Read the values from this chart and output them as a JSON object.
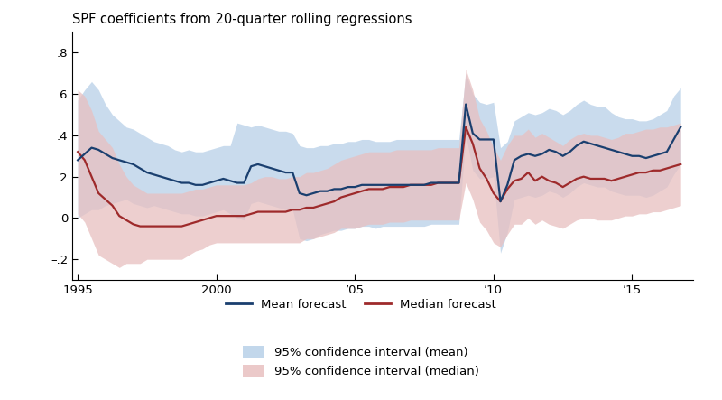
{
  "title": "SPF coefficients from 20-quarter rolling regressions",
  "xlim": [
    1994.8,
    2017.2
  ],
  "ylim": [
    -0.3,
    0.9
  ],
  "yticks": [
    -0.2,
    0.0,
    0.2,
    0.4,
    0.6,
    0.8
  ],
  "ytick_labels": [
    "–.2",
    "0",
    ".2",
    ".4",
    ".6",
    ".8"
  ],
  "xtick_positions": [
    1995,
    2000,
    2005,
    2010,
    2015
  ],
  "xtick_labels": [
    "1995",
    "2000",
    "’05",
    "’10",
    "’15"
  ],
  "mean_color": "#1a3f6f",
  "median_color": "#9e2a2b",
  "mean_ci_color": "#b8d0e8",
  "median_ci_color": "#e8c0c0",
  "mean_x": [
    1995.0,
    1995.25,
    1995.5,
    1995.75,
    1996.0,
    1996.25,
    1996.5,
    1996.75,
    1997.0,
    1997.25,
    1997.5,
    1997.75,
    1998.0,
    1998.25,
    1998.5,
    1998.75,
    1999.0,
    1999.25,
    1999.5,
    1999.75,
    2000.0,
    2000.25,
    2000.5,
    2000.75,
    2001.0,
    2001.25,
    2001.5,
    2001.75,
    2002.0,
    2002.25,
    2002.5,
    2002.75,
    2003.0,
    2003.25,
    2003.5,
    2003.75,
    2004.0,
    2004.25,
    2004.5,
    2004.75,
    2005.0,
    2005.25,
    2005.5,
    2005.75,
    2006.0,
    2006.25,
    2006.5,
    2006.75,
    2007.0,
    2007.25,
    2007.5,
    2007.75,
    2008.0,
    2008.25,
    2008.5,
    2008.75,
    2009.0,
    2009.25,
    2009.5,
    2009.75,
    2010.0,
    2010.25,
    2010.5,
    2010.75,
    2011.0,
    2011.25,
    2011.5,
    2011.75,
    2012.0,
    2012.25,
    2012.5,
    2012.75,
    2013.0,
    2013.25,
    2013.5,
    2013.75,
    2014.0,
    2014.25,
    2014.5,
    2014.75,
    2015.0,
    2015.25,
    2015.5,
    2015.75,
    2016.0,
    2016.25,
    2016.5,
    2016.75
  ],
  "mean_y": [
    0.28,
    0.31,
    0.34,
    0.33,
    0.31,
    0.29,
    0.28,
    0.27,
    0.26,
    0.24,
    0.22,
    0.21,
    0.2,
    0.19,
    0.18,
    0.17,
    0.17,
    0.16,
    0.16,
    0.17,
    0.18,
    0.19,
    0.18,
    0.17,
    0.17,
    0.25,
    0.26,
    0.25,
    0.24,
    0.23,
    0.22,
    0.22,
    0.12,
    0.11,
    0.12,
    0.13,
    0.13,
    0.14,
    0.14,
    0.15,
    0.15,
    0.16,
    0.16,
    0.16,
    0.16,
    0.16,
    0.16,
    0.16,
    0.16,
    0.16,
    0.16,
    0.17,
    0.17,
    0.17,
    0.17,
    0.17,
    0.55,
    0.41,
    0.38,
    0.38,
    0.38,
    0.08,
    0.16,
    0.28,
    0.3,
    0.31,
    0.3,
    0.31,
    0.33,
    0.32,
    0.3,
    0.32,
    0.35,
    0.37,
    0.36,
    0.35,
    0.34,
    0.33,
    0.32,
    0.31,
    0.3,
    0.3,
    0.29,
    0.3,
    0.31,
    0.32,
    0.38,
    0.44
  ],
  "mean_ci_upper": [
    0.57,
    0.62,
    0.66,
    0.62,
    0.55,
    0.5,
    0.47,
    0.44,
    0.43,
    0.41,
    0.39,
    0.37,
    0.36,
    0.35,
    0.33,
    0.32,
    0.33,
    0.32,
    0.32,
    0.33,
    0.34,
    0.35,
    0.35,
    0.46,
    0.45,
    0.44,
    0.45,
    0.44,
    0.43,
    0.42,
    0.42,
    0.41,
    0.35,
    0.34,
    0.34,
    0.35,
    0.35,
    0.36,
    0.36,
    0.37,
    0.37,
    0.38,
    0.38,
    0.37,
    0.37,
    0.37,
    0.38,
    0.38,
    0.38,
    0.38,
    0.38,
    0.38,
    0.38,
    0.38,
    0.38,
    0.38,
    0.7,
    0.6,
    0.56,
    0.55,
    0.56,
    0.34,
    0.37,
    0.47,
    0.49,
    0.51,
    0.5,
    0.51,
    0.53,
    0.52,
    0.5,
    0.52,
    0.55,
    0.57,
    0.55,
    0.54,
    0.54,
    0.51,
    0.49,
    0.48,
    0.48,
    0.47,
    0.47,
    0.48,
    0.5,
    0.52,
    0.59,
    0.63
  ],
  "mean_ci_lower": [
    0.0,
    0.02,
    0.04,
    0.04,
    0.06,
    0.07,
    0.08,
    0.09,
    0.07,
    0.06,
    0.05,
    0.06,
    0.05,
    0.04,
    0.03,
    0.02,
    0.02,
    0.01,
    0.01,
    0.02,
    0.03,
    0.04,
    0.02,
    0.0,
    -0.01,
    0.07,
    0.08,
    0.07,
    0.06,
    0.05,
    0.04,
    0.04,
    -0.1,
    -0.11,
    -0.1,
    -0.08,
    -0.07,
    -0.06,
    -0.06,
    -0.05,
    -0.05,
    -0.04,
    -0.04,
    -0.05,
    -0.04,
    -0.04,
    -0.04,
    -0.04,
    -0.04,
    -0.04,
    -0.04,
    -0.03,
    -0.03,
    -0.03,
    -0.03,
    -0.03,
    0.4,
    0.23,
    0.19,
    0.19,
    0.2,
    -0.17,
    -0.07,
    0.09,
    0.1,
    0.11,
    0.1,
    0.11,
    0.13,
    0.12,
    0.1,
    0.12,
    0.15,
    0.17,
    0.16,
    0.15,
    0.15,
    0.13,
    0.12,
    0.11,
    0.11,
    0.11,
    0.1,
    0.11,
    0.13,
    0.15,
    0.21,
    0.26
  ],
  "median_x": [
    1995.0,
    1995.25,
    1995.5,
    1995.75,
    1996.0,
    1996.25,
    1996.5,
    1996.75,
    1997.0,
    1997.25,
    1997.5,
    1997.75,
    1998.0,
    1998.25,
    1998.5,
    1998.75,
    1999.0,
    1999.25,
    1999.5,
    1999.75,
    2000.0,
    2000.25,
    2000.5,
    2000.75,
    2001.0,
    2001.25,
    2001.5,
    2001.75,
    2002.0,
    2002.25,
    2002.5,
    2002.75,
    2003.0,
    2003.25,
    2003.5,
    2003.75,
    2004.0,
    2004.25,
    2004.5,
    2004.75,
    2005.0,
    2005.25,
    2005.5,
    2005.75,
    2006.0,
    2006.25,
    2006.5,
    2006.75,
    2007.0,
    2007.25,
    2007.5,
    2007.75,
    2008.0,
    2008.25,
    2008.5,
    2008.75,
    2009.0,
    2009.25,
    2009.5,
    2009.75,
    2010.0,
    2010.25,
    2010.5,
    2010.75,
    2011.0,
    2011.25,
    2011.5,
    2011.75,
    2012.0,
    2012.25,
    2012.5,
    2012.75,
    2013.0,
    2013.25,
    2013.5,
    2013.75,
    2014.0,
    2014.25,
    2014.5,
    2014.75,
    2015.0,
    2015.25,
    2015.5,
    2015.75,
    2016.0,
    2016.25,
    2016.5,
    2016.75
  ],
  "median_y": [
    0.32,
    0.28,
    0.2,
    0.12,
    0.09,
    0.06,
    0.01,
    -0.01,
    -0.03,
    -0.04,
    -0.04,
    -0.04,
    -0.04,
    -0.04,
    -0.04,
    -0.04,
    -0.03,
    -0.02,
    -0.01,
    0.0,
    0.01,
    0.01,
    0.01,
    0.01,
    0.01,
    0.02,
    0.03,
    0.03,
    0.03,
    0.03,
    0.03,
    0.04,
    0.04,
    0.05,
    0.05,
    0.06,
    0.07,
    0.08,
    0.1,
    0.11,
    0.12,
    0.13,
    0.14,
    0.14,
    0.14,
    0.15,
    0.15,
    0.15,
    0.16,
    0.16,
    0.16,
    0.16,
    0.17,
    0.17,
    0.17,
    0.17,
    0.44,
    0.36,
    0.24,
    0.19,
    0.12,
    0.08,
    0.14,
    0.18,
    0.19,
    0.22,
    0.18,
    0.2,
    0.18,
    0.17,
    0.15,
    0.17,
    0.19,
    0.2,
    0.19,
    0.19,
    0.19,
    0.18,
    0.19,
    0.2,
    0.21,
    0.22,
    0.22,
    0.23,
    0.23,
    0.24,
    0.25,
    0.26
  ],
  "median_ci_upper": [
    0.62,
    0.59,
    0.52,
    0.42,
    0.38,
    0.34,
    0.26,
    0.2,
    0.16,
    0.14,
    0.12,
    0.12,
    0.12,
    0.12,
    0.12,
    0.12,
    0.13,
    0.14,
    0.14,
    0.15,
    0.16,
    0.16,
    0.16,
    0.16,
    0.16,
    0.17,
    0.19,
    0.2,
    0.2,
    0.19,
    0.19,
    0.2,
    0.2,
    0.22,
    0.22,
    0.23,
    0.24,
    0.26,
    0.28,
    0.29,
    0.3,
    0.31,
    0.32,
    0.32,
    0.32,
    0.32,
    0.33,
    0.33,
    0.33,
    0.33,
    0.33,
    0.33,
    0.34,
    0.34,
    0.34,
    0.34,
    0.72,
    0.62,
    0.48,
    0.42,
    0.34,
    0.28,
    0.35,
    0.4,
    0.4,
    0.43,
    0.39,
    0.41,
    0.39,
    0.37,
    0.35,
    0.38,
    0.4,
    0.41,
    0.4,
    0.4,
    0.39,
    0.38,
    0.39,
    0.41,
    0.41,
    0.42,
    0.43,
    0.43,
    0.44,
    0.44,
    0.45,
    0.46
  ],
  "median_ci_lower": [
    0.02,
    -0.02,
    -0.1,
    -0.18,
    -0.2,
    -0.22,
    -0.24,
    -0.22,
    -0.22,
    -0.22,
    -0.2,
    -0.2,
    -0.2,
    -0.2,
    -0.2,
    -0.2,
    -0.18,
    -0.16,
    -0.15,
    -0.13,
    -0.12,
    -0.12,
    -0.12,
    -0.12,
    -0.12,
    -0.12,
    -0.12,
    -0.12,
    -0.12,
    -0.12,
    -0.12,
    -0.12,
    -0.12,
    -0.1,
    -0.1,
    -0.09,
    -0.08,
    -0.07,
    -0.05,
    -0.05,
    -0.05,
    -0.04,
    -0.03,
    -0.03,
    -0.03,
    -0.02,
    -0.02,
    -0.02,
    -0.01,
    -0.01,
    -0.01,
    -0.01,
    -0.01,
    -0.01,
    -0.01,
    -0.01,
    0.17,
    0.09,
    -0.02,
    -0.06,
    -0.12,
    -0.14,
    -0.08,
    -0.03,
    -0.03,
    0.0,
    -0.03,
    -0.01,
    -0.03,
    -0.04,
    -0.05,
    -0.03,
    -0.01,
    0.0,
    0.0,
    -0.01,
    -0.01,
    -0.01,
    0.0,
    0.01,
    0.01,
    0.02,
    0.02,
    0.03,
    0.03,
    0.04,
    0.05,
    0.06
  ]
}
